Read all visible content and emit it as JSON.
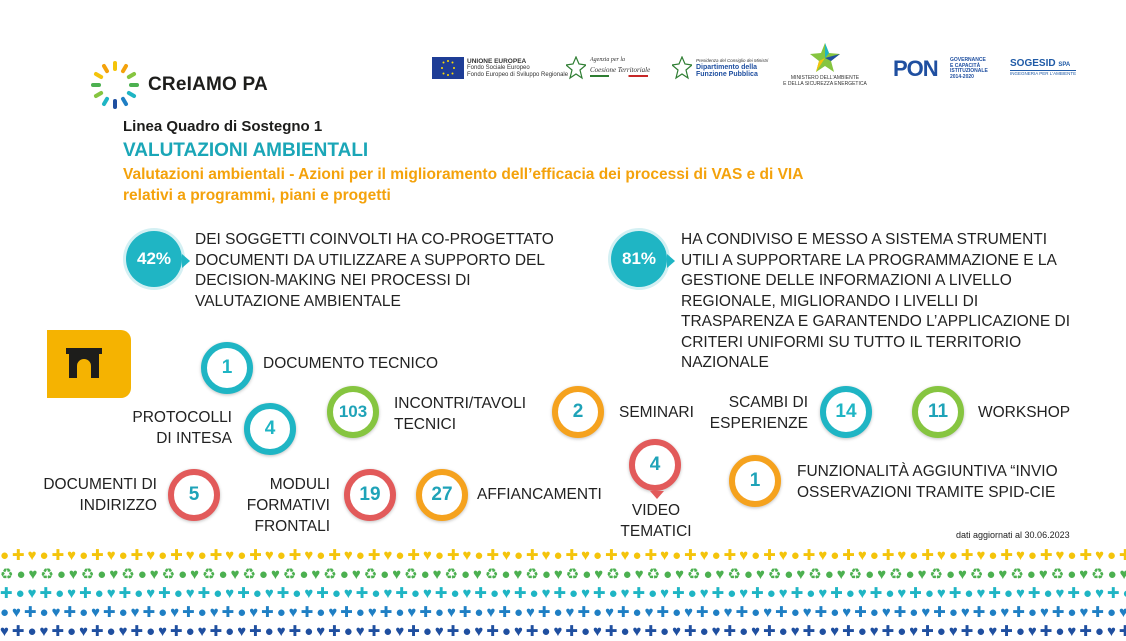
{
  "brand": {
    "name": "CReIAMO PA"
  },
  "partners": {
    "eu_title": "UNIONE EUROPEA",
    "eu_line1": "Fondo Sociale Europeo",
    "eu_line2": "Fondo Europeo di Sviluppo Regionale",
    "agenzia_line1": "Agenzia per la",
    "agenzia_line2": "Coesione Territoriale",
    "funzione_line1": "Presidenza del Consiglio dei Ministri",
    "funzione_line2": "Dipartimento della",
    "funzione_line3": "Funzione Pubblica",
    "ministero_line1": "MINISTERO DELL'AMBIENTE",
    "ministero_line2": "E DELLA SICUREZZA ENERGETICA",
    "pon_logo": "PON",
    "pon_line1": "GOVERNANCE",
    "pon_line2": "E CAPACITÀ",
    "pon_line3": "ISTITUZIONALE",
    "pon_line4": "2014-2020",
    "sogesid_name": "SOGESID",
    "sogesid_spa": "SPA",
    "sogesid_tag": "INGEGNERIA PER L'AMBIENTE"
  },
  "header": {
    "line": "Linea Quadro di Sostegno 1",
    "title": "VALUTAZIONI AMBIENTALI",
    "subtitle": "Valutazioni ambientali - Azioni per il miglioramento dell’efficacia dei processi di VAS e di VIA relativi a programmi, piani e progetti"
  },
  "stats": [
    {
      "value": "42%",
      "text": "DEI SOGGETTI COINVOLTI HA CO-PROGETTATO DOCUMENTI DA UTILIZZARE A SUPPORTO DEL DECISION-MAKING NEI PROCESSI DI VALUTAZIONE AMBIENTALE"
    },
    {
      "value": "81%",
      "text": "HA CONDIVISO E MESSO A SISTEMA STRUMENTI UTILI A SUPPORTARE LA PROGRAMMAZIONE E LA GESTIONE DELLE INFORMAZIONI A LIVELLO REGIONALE, MIGLIORANDO I LIVELLI DI TRASPARENZA E GARANTENDO L’APPLICAZIONE DI CRITERI UNIFORMI SU TUTTO IL TERRITORIO NAZIONALE"
    }
  ],
  "outputs": {
    "documento_tecnico": {
      "value": "1",
      "label": "DOCUMENTO TECNICO"
    },
    "protocolli": {
      "value": "4",
      "label1": "PROTOCOLLI",
      "label2": "DI INTESA"
    },
    "incontri": {
      "value": "103",
      "label1": "INCONTRI/TAVOLI",
      "label2": "TECNICI"
    },
    "seminari": {
      "value": "2",
      "label": "SEMINARI"
    },
    "scambi": {
      "value": "14",
      "label1": "SCAMBI DI",
      "label2": "ESPERIENZE"
    },
    "workshop": {
      "value": "11",
      "label": "WORKSHOP"
    },
    "documenti_indirizzo": {
      "value": "5",
      "label1": "DOCUMENTI DI",
      "label2": "INDIRIZZO"
    },
    "moduli": {
      "value": "19",
      "label1": "MODULI",
      "label2": "FORMATIVI",
      "label3": "FRONTALI"
    },
    "affiancamenti": {
      "value": "27",
      "label": "AFFIANCAMENTI"
    },
    "video": {
      "value": "4",
      "label1": "VIDEO",
      "label2": "TEMATICI"
    },
    "funzionalita": {
      "value": "1",
      "label1": "FUNZIONALITÀ AGGIUNTIVA “INVIO",
      "label2": "OSSERVAZIONI TRAMITE SPID-CIE"
    }
  },
  "footer": {
    "note": "dati aggiornati al 30.06.2023"
  },
  "colors": {
    "teal": "#1fb5c4",
    "green": "#86c540",
    "orange": "#f5a21e",
    "red": "#e25a5a",
    "yellow": "#f5b301",
    "title_teal": "#1aa6b7",
    "subtitle_orange": "#f4a20b"
  },
  "icons": [
    "sun-logo-icon",
    "arch-icon",
    "location-pin-icon",
    "pattern-icons"
  ]
}
